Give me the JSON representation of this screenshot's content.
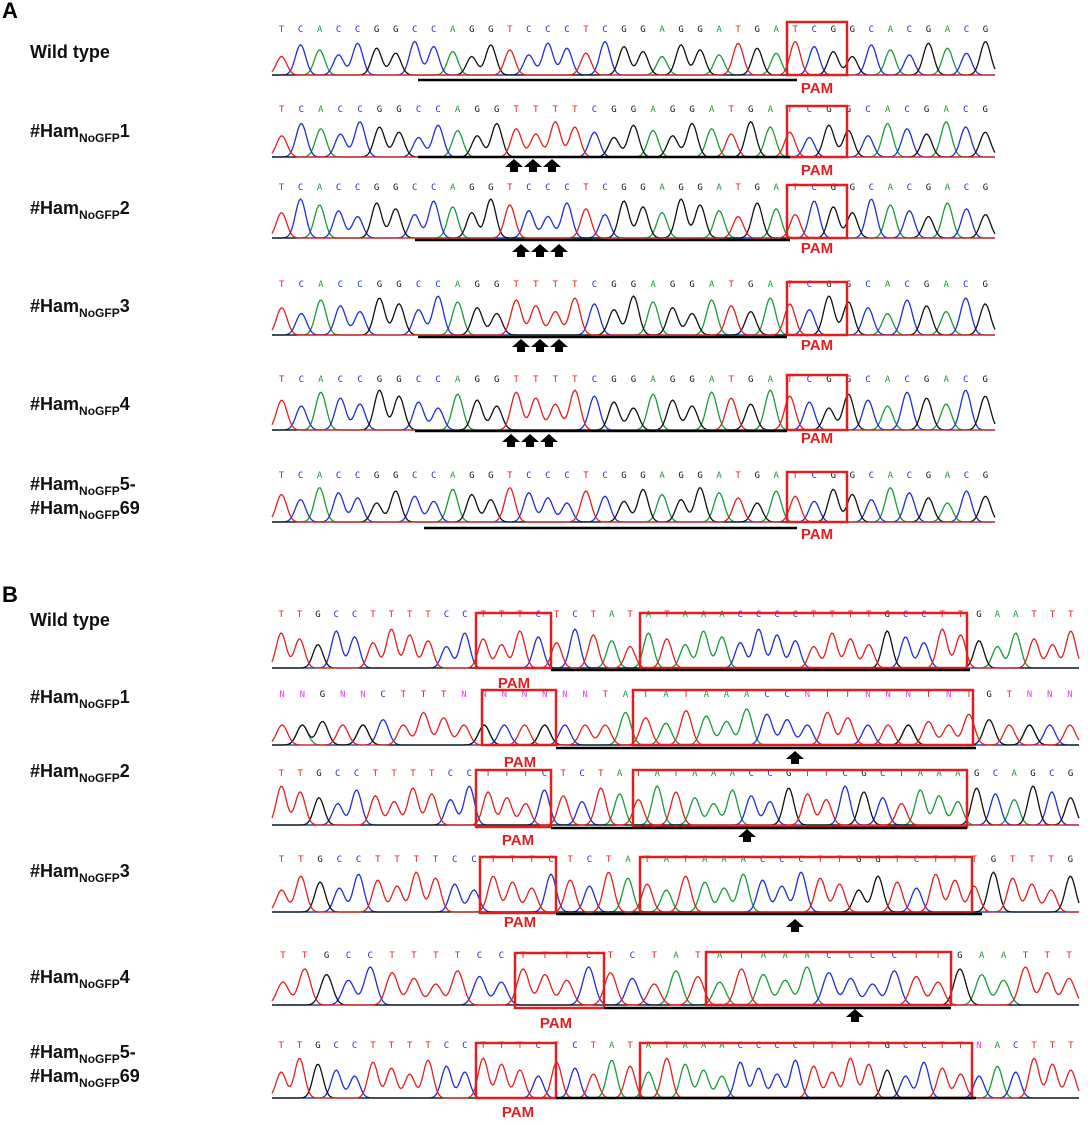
{
  "panels": [
    {
      "label": "A",
      "rows": [
        {
          "name": [
            {
              "prefix": "Wild type"
            }
          ],
          "sequence": "TCACCGGCCAGGTCCCTCGGAGGATGATCGGCACGACG",
          "pam": "PAM"
        },
        {
          "name": [
            {
              "prefix": "#Ham",
              "sub": "NoGFP",
              "suffix": "1"
            }
          ],
          "sequence": "TCACCGGCCAGGTTTTCGGAGGATGATCGGCACGACG",
          "pam": "PAM"
        },
        {
          "name": [
            {
              "prefix": "#Ham",
              "sub": "NoGFP",
              "suffix": "2"
            }
          ],
          "sequence": "TCACCGGCCAGGTCCCTCGGAGGATGATCGGCACGACG",
          "pam": "PAM"
        },
        {
          "name": [
            {
              "prefix": "#Ham",
              "sub": "NoGFP",
              "suffix": "3"
            }
          ],
          "sequence": "TCACCGGCCAGGTTTTCGGAGGATGATCGGCACGACG",
          "pam": "PAM"
        },
        {
          "name": [
            {
              "prefix": "#Ham",
              "sub": "NoGFP",
              "suffix": "4"
            }
          ],
          "sequence": "TCACCGGCCAGGTTTTCGGAGGATGATCGGCACGACG",
          "pam": "PAM"
        },
        {
          "name": [
            {
              "prefix": "#Ham",
              "sub": "NoGFP",
              "suffix": "5-"
            },
            {
              "prefix": "#Ham",
              "sub": "NoGFP",
              "suffix": "69"
            }
          ],
          "sequence": "TCACCGGCCAGGTCCCTCGGAGGATGATCGGCACGACG",
          "pam": "PAM"
        }
      ]
    },
    {
      "label": "B",
      "rows": [
        {
          "name": [
            {
              "prefix": "Wild type"
            }
          ],
          "sequence": "TTGCCTTTTCCTTTCTCTATATAAACCCCTTTTGCCTTGAATTT",
          "pam": "PAM"
        },
        {
          "name": [
            {
              "prefix": "#Ham",
              "sub": "NoGFP",
              "suffix": "1"
            }
          ],
          "sequence": "NNGNNCTTTNNNNNNNTATATAAACCNTTNNNTNTGTNNN",
          "pam": "PAM"
        },
        {
          "name": [
            {
              "prefix": "#Ham",
              "sub": "NoGFP",
              "suffix": "2"
            }
          ],
          "sequence": "TTGCCTTTTCCTTTCTCTATATAAACCGTTCGCTAAAGCAGCG",
          "pam": "PAM"
        },
        {
          "name": [
            {
              "prefix": "#Ham",
              "sub": "NoGFP",
              "suffix": "3"
            }
          ],
          "sequence": "TTGCCTTTTCCTTTCTCTATATAAACCCTTGGTCTTTGTTTG",
          "pam": "PAM"
        },
        {
          "name": [
            {
              "prefix": "#Ham",
              "sub": "NoGFP",
              "suffix": "4"
            }
          ],
          "sequence": "TTGCCTTTTCCTTTCTCTATATAAACCCCTTGAATTT",
          "pam": "PAM"
        },
        {
          "name": [
            {
              "prefix": "#Ham",
              "sub": "NoGFP",
              "suffix": "5-"
            },
            {
              "prefix": "#Ham",
              "sub": "NoGFP",
              "suffix": "69"
            }
          ],
          "sequence": "TTGCCTTTTCCTTTCTCTATATAAACCCCTTTTGCCTTNACTTT",
          "pam": "PAM"
        }
      ]
    }
  ]
}
